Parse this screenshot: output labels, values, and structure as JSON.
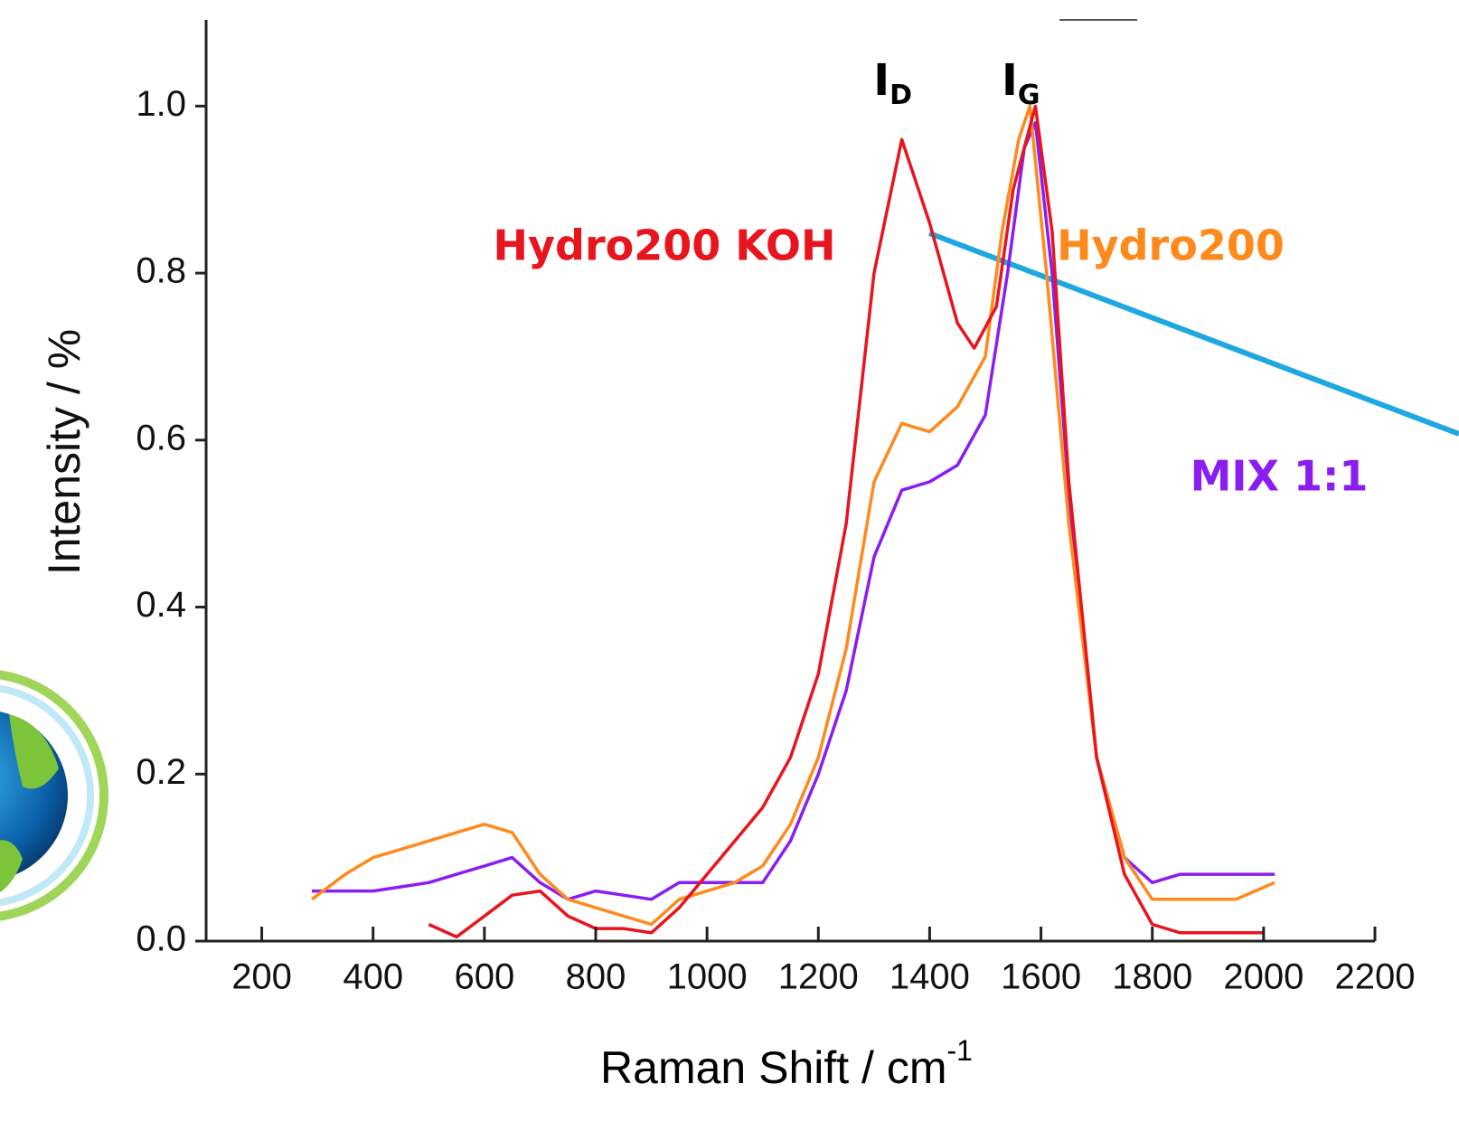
{
  "chart_data": {
    "type": "line",
    "x_label": "Raman Shift / cm",
    "x_label_sup": "-1",
    "y_label": "Intensity / %",
    "xlim": [
      100,
      2200
    ],
    "xticks": [
      200,
      400,
      600,
      800,
      1000,
      1200,
      1400,
      1600,
      1800,
      2000,
      2200
    ],
    "ylim": [
      0,
      1.1
    ],
    "yticks": [
      {
        "value": 0,
        "label": "0.0"
      },
      0.2,
      0.4,
      0.6,
      0.8,
      {
        "value": 1,
        "label": "1.0"
      }
    ],
    "annotations": [
      {
        "text": "I",
        "sub": "D",
        "x": 1350
      },
      {
        "text": "I",
        "sub": "G",
        "x": 1580
      }
    ],
    "series": [
      {
        "name": "MIX 1:1",
        "color": "#8a1ef0",
        "x": [
          290,
          350,
          400,
          450,
          500,
          550,
          600,
          650,
          700,
          750,
          800,
          850,
          900,
          950,
          1000,
          1050,
          1100,
          1150,
          1200,
          1250,
          1300,
          1350,
          1400,
          1450,
          1500,
          1540,
          1570,
          1590,
          1620,
          1660,
          1700,
          1750,
          1800,
          1850,
          1900,
          1950,
          2020
        ],
        "values": [
          0.06,
          0.06,
          0.06,
          0.065,
          0.07,
          0.08,
          0.09,
          0.1,
          0.07,
          0.05,
          0.06,
          0.055,
          0.05,
          0.07,
          0.07,
          0.07,
          0.07,
          0.12,
          0.2,
          0.3,
          0.46,
          0.54,
          0.55,
          0.57,
          0.63,
          0.8,
          0.95,
          0.98,
          0.8,
          0.45,
          0.22,
          0.1,
          0.07,
          0.08,
          0.08,
          0.08,
          0.08
        ]
      },
      {
        "name": "Hydro200",
        "color": "#ff8a1c",
        "x": [
          290,
          350,
          400,
          450,
          500,
          550,
          600,
          650,
          700,
          750,
          800,
          850,
          900,
          950,
          1000,
          1050,
          1100,
          1150,
          1200,
          1250,
          1300,
          1350,
          1400,
          1450,
          1500,
          1530,
          1560,
          1580,
          1610,
          1650,
          1700,
          1750,
          1800,
          1850,
          1900,
          1950,
          2020
        ],
        "values": [
          0.05,
          0.08,
          0.1,
          0.11,
          0.12,
          0.13,
          0.14,
          0.13,
          0.08,
          0.05,
          0.04,
          0.03,
          0.02,
          0.05,
          0.06,
          0.07,
          0.09,
          0.14,
          0.22,
          0.35,
          0.55,
          0.62,
          0.61,
          0.64,
          0.7,
          0.85,
          0.96,
          1.0,
          0.8,
          0.5,
          0.22,
          0.1,
          0.05,
          0.05,
          0.05,
          0.05,
          0.07
        ]
      },
      {
        "name": "Hydro200 KOH",
        "color": "#e8141e",
        "x": [
          500,
          550,
          600,
          650,
          700,
          750,
          800,
          850,
          900,
          950,
          1000,
          1050,
          1100,
          1150,
          1200,
          1250,
          1300,
          1350,
          1400,
          1450,
          1480,
          1520,
          1550,
          1590,
          1620,
          1650,
          1700,
          1750,
          1800,
          1850,
          1900,
          1950,
          2000
        ],
        "values": [
          0.02,
          0.005,
          0.03,
          0.055,
          0.06,
          0.03,
          0.015,
          0.015,
          0.01,
          0.04,
          0.08,
          0.12,
          0.16,
          0.22,
          0.32,
          0.5,
          0.8,
          0.96,
          0.86,
          0.74,
          0.71,
          0.76,
          0.9,
          1.0,
          0.85,
          0.55,
          0.22,
          0.08,
          0.02,
          0.01,
          0.01,
          0.01,
          0.01
        ]
      }
    ]
  }
}
